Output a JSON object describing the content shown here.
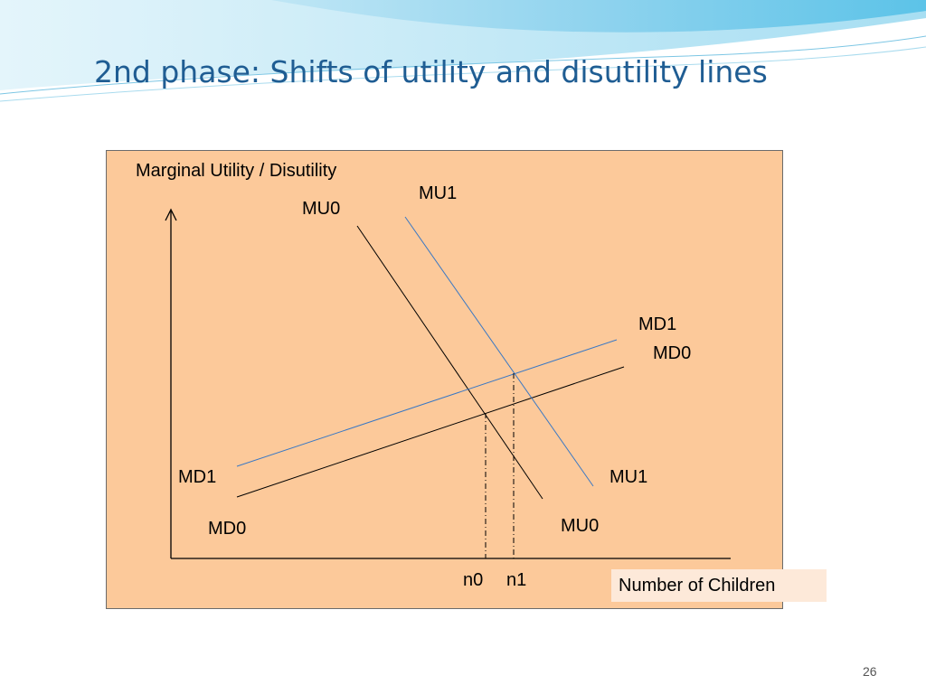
{
  "slide": {
    "title": "2nd phase: Shifts of utility and disutility lines",
    "page_number": "26"
  },
  "diagram": {
    "yaxis_label": "Marginal Utility / Disutility",
    "xaxis_label": "Number of Children",
    "curve_labels": {
      "mu0_top": "MU0",
      "mu1_top": "MU1",
      "md1_right": "MD1",
      "md0_right": "MD0",
      "md1_left": "MD1",
      "md0_left": "MD0",
      "mu1_bottom": "MU1",
      "mu0_bottom": "MU0"
    },
    "equilibrium_labels": {
      "n0": "n0",
      "n1": "n1"
    },
    "colors": {
      "background": "#fcc99a",
      "original_lines": "#000000",
      "shifted_lines": "#3a78c4"
    }
  }
}
